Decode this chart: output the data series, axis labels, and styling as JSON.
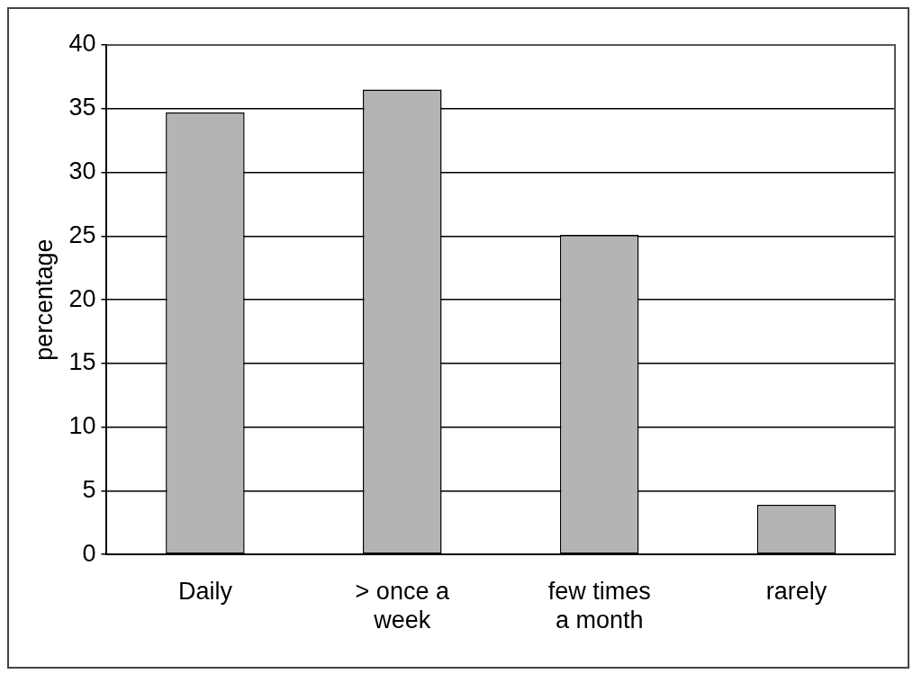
{
  "chart_data": {
    "type": "bar",
    "ylabel": "percentage",
    "categories": [
      "Daily",
      "> once a week",
      "few times a month",
      "rarely"
    ],
    "values": [
      34.7,
      36.5,
      25.1,
      3.9
    ],
    "color": "#b4b4b4",
    "ylim": [
      0,
      40
    ],
    "yticks": [
      0,
      5,
      10,
      15,
      20,
      25,
      30,
      35,
      40
    ],
    "grid": "y",
    "legend": false
  }
}
